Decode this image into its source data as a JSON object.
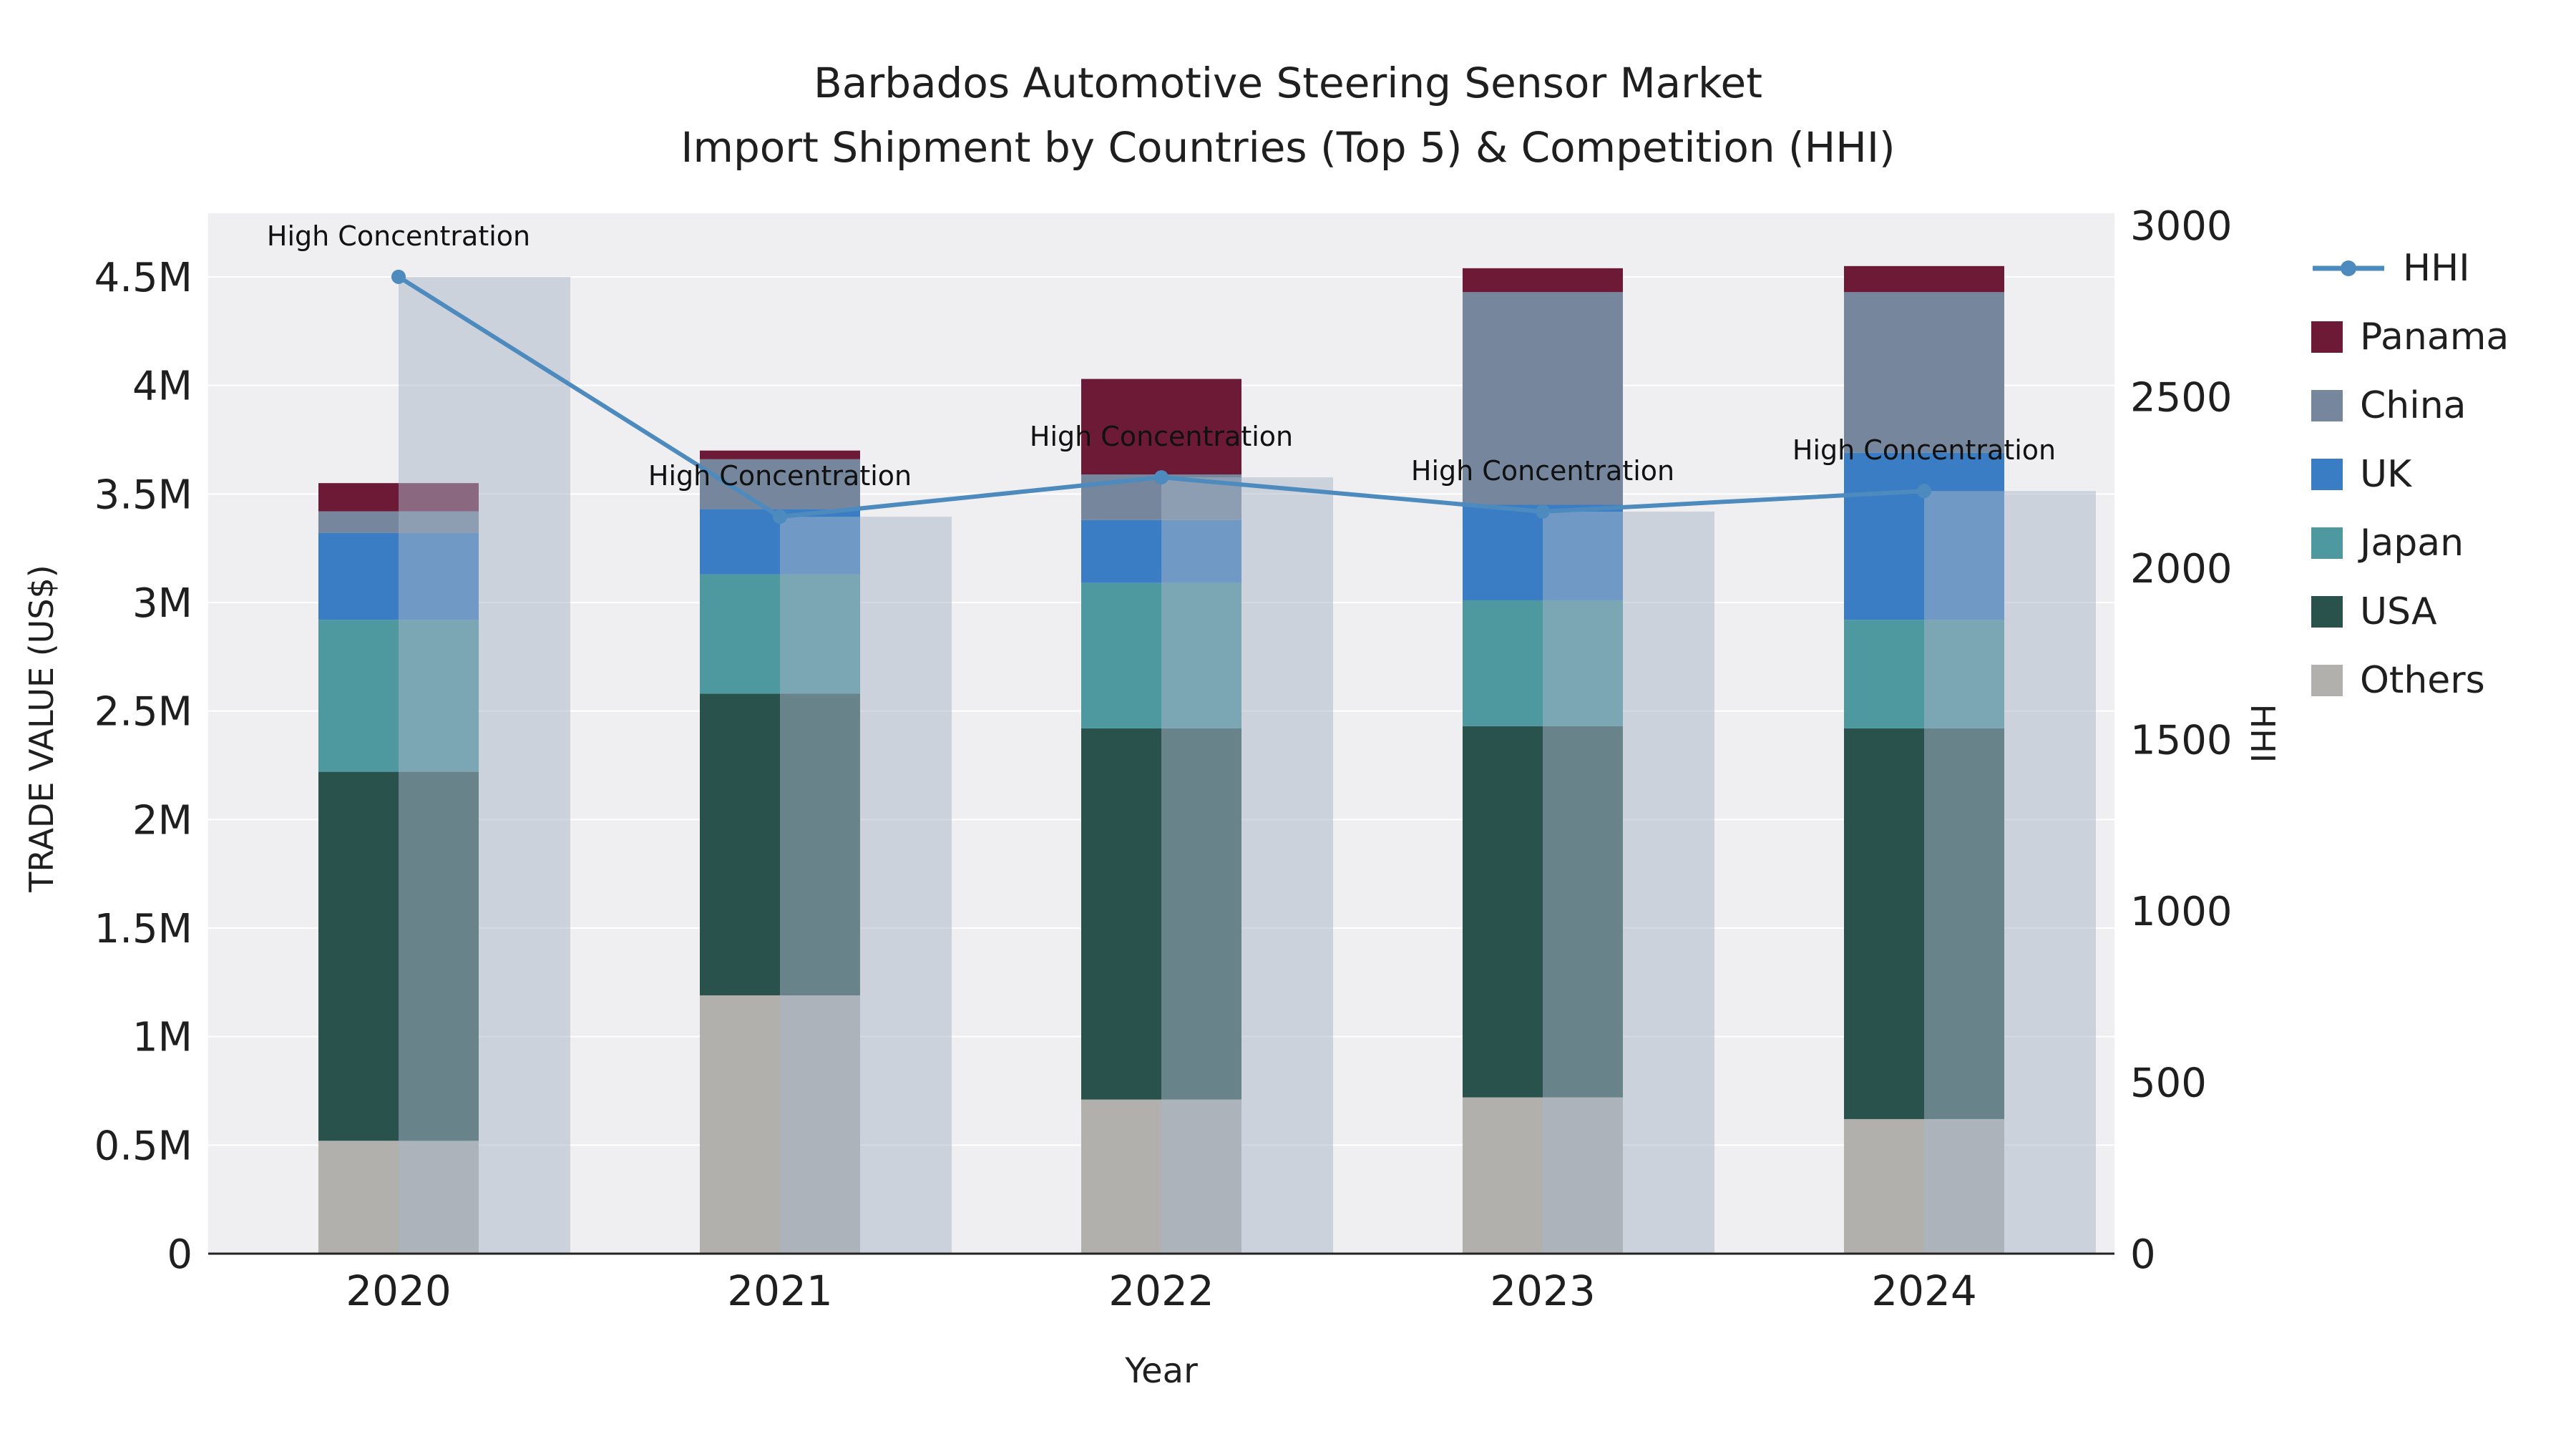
{
  "chart_data": {
    "type": "combo-stacked-bar-line",
    "title_line1": "Barbados Automotive Steering Sensor Market",
    "title_line2": "Import Shipment by Countries (Top 5) & Competition (HHI)",
    "x_title": "Year",
    "y_left_title": "TRADE VALUE (US$)",
    "y_right_title": "HHI",
    "categories": [
      "2020",
      "2021",
      "2022",
      "2023",
      "2024"
    ],
    "y_left_ticks": [
      "0",
      "0.5M",
      "1M",
      "1.5M",
      "2M",
      "2.5M",
      "3M",
      "3.5M",
      "4M",
      "4.5M"
    ],
    "y_left_tick_step": 500000,
    "y_right_ticks": [
      "0",
      "500",
      "1000",
      "1500",
      "2000",
      "2500",
      "3000"
    ],
    "y_right_tick_step": 500,
    "bar_series": [
      {
        "name": "Others",
        "color": "#b2b0ad",
        "values": [
          520000,
          1190000,
          710000,
          720000,
          620000
        ]
      },
      {
        "name": "USA",
        "color": "#29524d",
        "values": [
          1700000,
          1390000,
          1710000,
          1710000,
          1800000
        ]
      },
      {
        "name": "Japan",
        "color": "#4e99a0",
        "values": [
          700000,
          550000,
          670000,
          580000,
          500000
        ]
      },
      {
        "name": "UK",
        "color": "#3b7dc5",
        "values": [
          400000,
          300000,
          290000,
          440000,
          770000
        ]
      },
      {
        "name": "China",
        "color": "#75869d",
        "values": [
          100000,
          230000,
          210000,
          980000,
          740000
        ]
      },
      {
        "name": "Panama",
        "color": "#6d1a37",
        "values": [
          130000,
          40000,
          440000,
          110000,
          120000
        ]
      }
    ],
    "line_series": {
      "name": "HHI",
      "color": "#4d8bbf",
      "values": [
        2850,
        2150,
        2265,
        2165,
        2225
      ]
    },
    "annotations": [
      "High Concentration",
      "High Concentration",
      "High Concentration",
      "High Concentration",
      "High Concentration"
    ],
    "legend": [
      {
        "label": "HHI",
        "type": "line",
        "color": "#4d8bbf"
      },
      {
        "label": "Panama",
        "type": "swatch",
        "color": "#6d1a37"
      },
      {
        "label": "China",
        "type": "swatch",
        "color": "#75869d"
      },
      {
        "label": "UK",
        "type": "swatch",
        "color": "#3b7dc5"
      },
      {
        "label": "Japan",
        "type": "swatch",
        "color": "#4e99a0"
      },
      {
        "label": "USA",
        "type": "swatch",
        "color": "#29524d"
      },
      {
        "label": "Others",
        "type": "swatch",
        "color": "#b2b0ad"
      }
    ],
    "colors": {
      "plot_bg": "#efeff1",
      "grid": "#ffffff",
      "hhi_bar_overlay": "rgba(168,181,199,0.5)",
      "axis_line": "#222222",
      "text": "#1f1f1f",
      "annotation_text": "#111111"
    }
  }
}
